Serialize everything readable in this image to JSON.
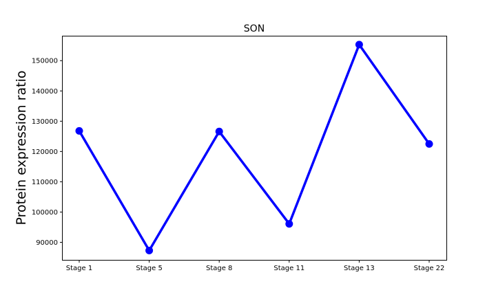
{
  "chart_data": {
    "type": "line",
    "title": "SON",
    "xlabel": "",
    "ylabel": "Protein expression ratio",
    "categories": [
      "Stage 1",
      "Stage 5",
      "Stage 8",
      "Stage 11",
      "Stage 13",
      "Stage 22"
    ],
    "series": [
      {
        "values": [
          126800,
          87300,
          126600,
          96100,
          155300,
          122500
        ],
        "color": "#0000ff",
        "marker": "circle"
      }
    ],
    "yticks": [
      90000,
      100000,
      110000,
      120000,
      130000,
      140000,
      150000
    ],
    "ylim": [
      84200,
      158000
    ],
    "grid": false
  }
}
